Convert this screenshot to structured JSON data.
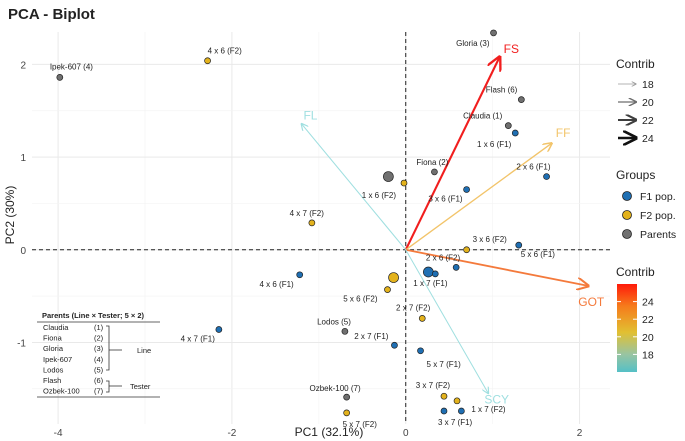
{
  "chart_data": {
    "type": "scatter",
    "title": "PCA - Biplot",
    "xlabel": "PC1 (32.1%)",
    "ylabel": "PC2 (30%)",
    "xlim": [
      -4.3,
      2.35
    ],
    "ylim": [
      -1.88,
      2.35
    ],
    "x_ticks": [
      -4,
      -2,
      0,
      2
    ],
    "y_ticks": [
      -1,
      0,
      1,
      2
    ],
    "grid": true,
    "group_colors": {
      "F1 pop.": "#1f6fb3",
      "F2 pop.": "#e3b21c",
      "Parents": "#707070"
    },
    "points": [
      {
        "label": "Ipek-607 (4)",
        "x": -3.98,
        "y": 1.86,
        "group": "Parents",
        "size": 3
      },
      {
        "label": "4 x 6 (F2)",
        "x": -2.28,
        "y": 2.04,
        "group": "F2 pop.",
        "size": 3
      },
      {
        "label": "Gloria (3)",
        "x": 1.01,
        "y": 2.34,
        "group": "Parents",
        "size": 3
      },
      {
        "label": "Flash (6)",
        "x": 1.33,
        "y": 1.62,
        "group": "Parents",
        "size": 3
      },
      {
        "label": "Claudia (1)",
        "x": 1.18,
        "y": 1.34,
        "group": "Parents",
        "size": 3
      },
      {
        "label": "1 x 6 (F1)",
        "x": 1.26,
        "y": 1.26,
        "group": "F1 pop.",
        "size": 3
      },
      {
        "label": "2 x 6 (F1)",
        "x": 1.62,
        "y": 0.79,
        "group": "F1 pop.",
        "size": 3
      },
      {
        "label": "Fiona (2)",
        "x": 0.33,
        "y": 0.84,
        "group": "Parents",
        "size": 3
      },
      {
        "label": "3 x 6 (F1)",
        "x": 0.7,
        "y": 0.65,
        "group": "F1 pop.",
        "size": 3
      },
      {
        "label": "1 x 6 (F2)",
        "x": -0.02,
        "y": 0.72,
        "group": "F2 pop.",
        "size": 3
      },
      {
        "label": "",
        "x": -0.2,
        "y": 0.79,
        "group": "Parents",
        "size": 5
      },
      {
        "label": "4 x 7 (F2)",
        "x": -1.08,
        "y": 0.29,
        "group": "F2 pop.",
        "size": 3
      },
      {
        "label": "3 x 6 (F2)",
        "x": 0.7,
        "y": 0.0,
        "group": "F2 pop.",
        "size": 3
      },
      {
        "label": "5 x 6 (F1)",
        "x": 1.3,
        "y": 0.05,
        "group": "F1 pop.",
        "size": 3
      },
      {
        "label": "2 x 6 (F2)",
        "x": 0.58,
        "y": -0.19,
        "group": "F1 pop.",
        "size": 3
      },
      {
        "label": "",
        "x": 0.26,
        "y": -0.24,
        "group": "F1 pop.",
        "size": 5
      },
      {
        "label": "1 x 7 (F1)",
        "x": 0.34,
        "y": -0.26,
        "group": "F1 pop.",
        "size": 3
      },
      {
        "label": "4 x 6 (F1)",
        "x": -1.22,
        "y": -0.27,
        "group": "F1 pop.",
        "size": 3
      },
      {
        "label": "",
        "x": -0.14,
        "y": -0.3,
        "group": "F2 pop.",
        "size": 5
      },
      {
        "label": "5 x 6 (F2)",
        "x": -0.21,
        "y": -0.43,
        "group": "F2 pop.",
        "size": 3
      },
      {
        "label": "2 x 7 (F2)",
        "x": 0.19,
        "y": -0.74,
        "group": "F2 pop.",
        "size": 3
      },
      {
        "label": "Lodos (5)",
        "x": -0.7,
        "y": -0.88,
        "group": "Parents",
        "size": 3
      },
      {
        "label": "4 x 7 (F1)",
        "x": -2.15,
        "y": -0.86,
        "group": "F1 pop.",
        "size": 3
      },
      {
        "label": "2 x 7 (F1)",
        "x": -0.13,
        "y": -1.03,
        "group": "F1 pop.",
        "size": 3
      },
      {
        "label": "5 x 7 (F1)",
        "x": 0.17,
        "y": -1.09,
        "group": "F1 pop.",
        "size": 3
      },
      {
        "label": "Ozbek-100 (7)",
        "x": -0.68,
        "y": -1.59,
        "group": "Parents",
        "size": 3
      },
      {
        "label": "5 x 7 (F2)",
        "x": -0.68,
        "y": -1.76,
        "group": "F2 pop.",
        "size": 3
      },
      {
        "label": "3 x 7 (F2)",
        "x": 0.44,
        "y": -1.58,
        "group": "F2 pop.",
        "size": 3
      },
      {
        "label": "",
        "x": 0.59,
        "y": -1.63,
        "group": "F2 pop.",
        "size": 3
      },
      {
        "label": "1 x 7 (F2)",
        "x": 0.64,
        "y": -1.74,
        "group": "F1 pop.",
        "size": 3
      },
      {
        "label": "3 x 7 (F1)",
        "x": 0.44,
        "y": -1.74,
        "group": "F1 pop.",
        "size": 3
      }
    ],
    "vectors": [
      {
        "label": "FS",
        "x": 1.08,
        "y": 2.08,
        "contrib": 25.2,
        "color": "#f11e1e"
      },
      {
        "label": "FF",
        "x": 1.68,
        "y": 1.15,
        "contrib": 19.0,
        "color": "#f2c46a"
      },
      {
        "label": "GOT",
        "x": 2.1,
        "y": -0.39,
        "contrib": 22.8,
        "color": "#f47a3c"
      },
      {
        "label": "FL",
        "x": -1.2,
        "y": 1.36,
        "contrib": 16.4,
        "color": "#9fdfe0"
      },
      {
        "label": "SCY",
        "x": 0.95,
        "y": -1.55,
        "contrib": 16.0,
        "color": "#9fdfe0"
      }
    ],
    "legend_contrib_arrows": {
      "title": "Contrib",
      "values": [
        "18",
        "20",
        "22",
        "24"
      ]
    },
    "legend_groups": {
      "title": "Groups",
      "items": [
        "F1 pop.",
        "F2 pop.",
        "Parents"
      ]
    },
    "legend_colorbar": {
      "title": "Contrib",
      "ticks": [
        "24",
        "22",
        "20",
        "18"
      ],
      "min": 16,
      "max": 26
    },
    "parents_table": {
      "title": "Parents (Line × Tester; 5 × 2)",
      "rows": [
        {
          "name": "Claudia",
          "num": "(1)"
        },
        {
          "name": "Fiona",
          "num": "(2)"
        },
        {
          "name": "Gloria",
          "num": "(3)"
        },
        {
          "name": "Ipek-607",
          "num": "(4)"
        },
        {
          "name": "Lodos",
          "num": "(5)"
        },
        {
          "name": "Flash",
          "num": "(6)"
        },
        {
          "name": "Ozbek-100",
          "num": "(7)"
        }
      ],
      "line_label": "Line",
      "tester_label": "Tester"
    }
  }
}
